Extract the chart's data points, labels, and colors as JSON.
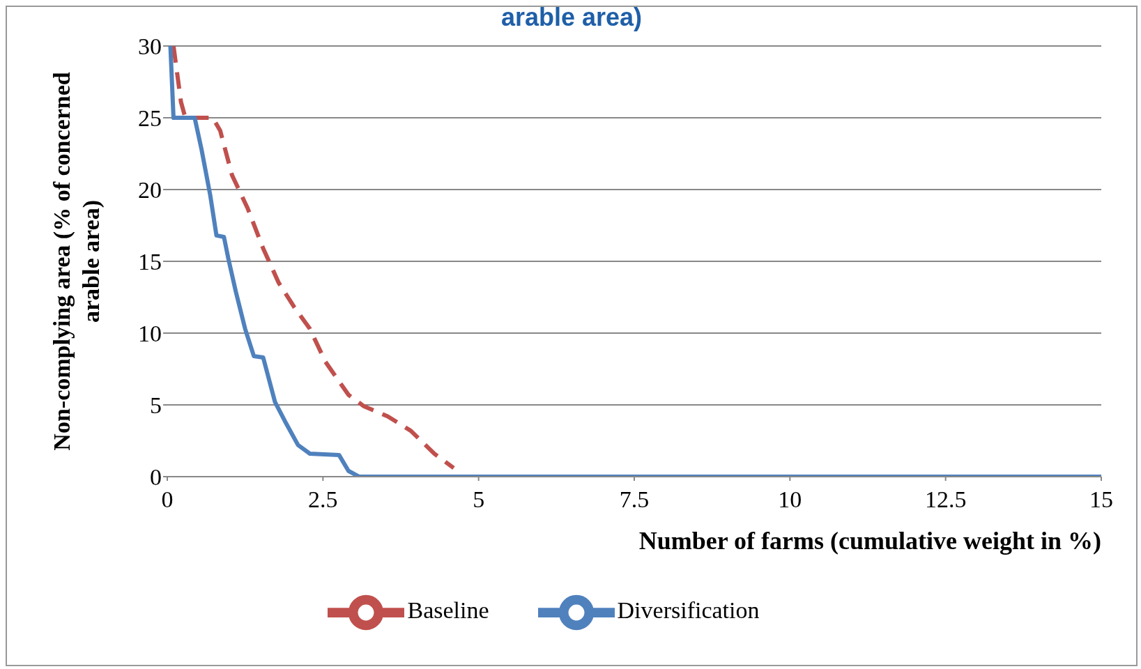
{
  "chart_data": {
    "type": "line",
    "title": "arable area)",
    "xlabel": "Number of farms (cumulative weight in %)",
    "ylabel": "Non-complying area (% of concerned arable area)",
    "xlim": [
      0,
      15
    ],
    "xticks": [
      0,
      2.5,
      5,
      7.5,
      10,
      12.5,
      15
    ],
    "ylim": [
      0,
      30
    ],
    "yticks": [
      0,
      5,
      10,
      15,
      20,
      25,
      30
    ],
    "grid": "y",
    "legend": "bottom",
    "marker": "none",
    "series": [
      {
        "name": "Baseline",
        "color": "#c0504d",
        "line_style": "dashed",
        "x": [
          0.1,
          0.22,
          0.29,
          0.73,
          0.85,
          1.04,
          1.29,
          1.54,
          1.79,
          2.04,
          2.29,
          2.54,
          2.91,
          3.16,
          3.54,
          3.91,
          4.29,
          4.6
        ],
        "values": [
          30,
          26.1,
          25,
          25,
          24.1,
          21,
          18.7,
          15.9,
          13.5,
          11.8,
          10.3,
          8,
          5.7,
          4.9,
          4.2,
          3.2,
          1.6,
          0.6
        ]
      },
      {
        "name": "Diversification",
        "color": "#4f81bd",
        "line_style": "solid",
        "x": [
          0.05,
          0.1,
          0.44,
          0.55,
          0.69,
          0.79,
          0.91,
          0.98,
          1.1,
          1.25,
          1.39,
          1.54,
          1.73,
          1.91,
          2.1,
          2.29,
          2.76,
          2.91,
          3.08,
          5,
          10,
          15
        ],
        "values": [
          30,
          25,
          25,
          22.8,
          19.6,
          16.8,
          16.7,
          15.2,
          12.9,
          10.3,
          8.4,
          8.3,
          5.2,
          3.7,
          2.2,
          1.6,
          1.5,
          0.4,
          0,
          0,
          0,
          0
        ]
      }
    ]
  }
}
